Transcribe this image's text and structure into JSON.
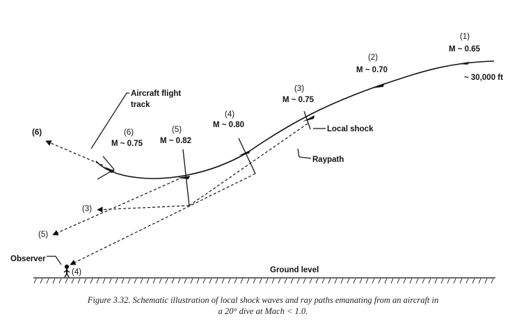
{
  "labels": {
    "pos1_num": "(1)",
    "pos1_mach": "M ~ 0.65",
    "pos2_num": "(2)",
    "pos2_mach": "M ~ 0.70",
    "pos3_num": "(3)",
    "pos3_mach": "M ~ 0.75",
    "pos4_num": "(4)",
    "pos4_mach": "M ~ 0.80",
    "pos5_num": "(5)",
    "pos5_mach": "M ~ 0.82",
    "pos6_num": "(6)",
    "pos6_mach": "M ~ 0.75",
    "altitude": "~ 30,000 ft",
    "flight_track_1": "Aircraft flight",
    "flight_track_2": "track",
    "local_shock": "Local shock",
    "raypath": "Raypath",
    "ray6": "(6)",
    "ray3": "(3)",
    "ray5": "(5)",
    "ray4": "(4)",
    "observer": "Observer",
    "ground": "Ground level"
  },
  "caption": {
    "line1": "Figure 3.32.  Schematic illustration of local shock waves and ray paths emanating from an aircraft in",
    "line2": "a 20° dive at Mach < 1.0."
  }
}
